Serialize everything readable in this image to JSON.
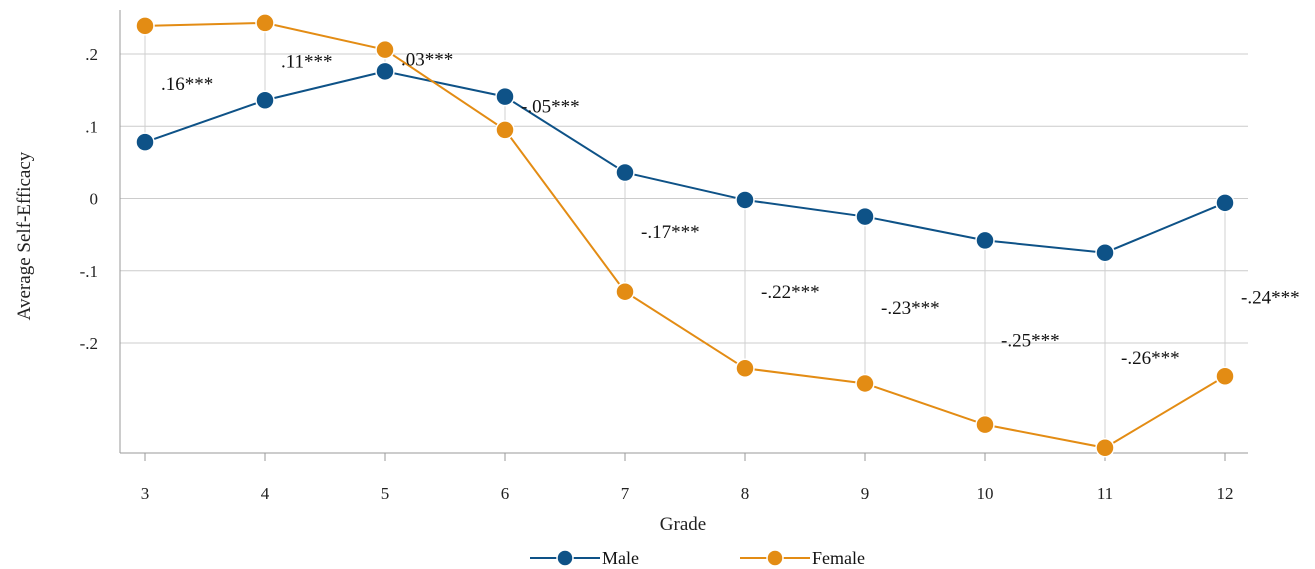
{
  "chart_data": {
    "type": "line",
    "title": "",
    "xlabel": "Grade",
    "ylabel": "Average Self-Efficacy",
    "x": [
      3,
      4,
      5,
      6,
      7,
      8,
      9,
      10,
      11,
      12
    ],
    "x_tick_labels": [
      "3",
      "4",
      "5",
      "6",
      "7",
      "8",
      "9",
      "10",
      "11",
      "12"
    ],
    "ylim": [
      -0.35,
      0.26
    ],
    "y_ticks": [
      0.2,
      0.1,
      0,
      -0.1,
      -0.2
    ],
    "y_tick_labels": [
      ".2",
      ".1",
      "0",
      "-.1",
      "-.2"
    ],
    "grid": "horizontal",
    "legend_position": "bottom",
    "series": [
      {
        "name": "Male",
        "color": "#0E5287",
        "values": [
          0.078,
          0.136,
          0.176,
          0.141,
          0.036,
          -0.002,
          -0.025,
          -0.058,
          -0.075,
          -0.006
        ]
      },
      {
        "name": "Female",
        "color": "#E38C14",
        "values": [
          0.239,
          0.243,
          0.206,
          0.095,
          -0.129,
          -0.235,
          -0.256,
          -0.313,
          -0.345,
          -0.246
        ]
      }
    ],
    "annotations": [
      {
        "x": 3,
        "text": ".16***"
      },
      {
        "x": 4,
        "text": ".11***"
      },
      {
        "x": 5,
        "text": ".03***"
      },
      {
        "x": 6,
        "text": "-.05***"
      },
      {
        "x": 7,
        "text": "-.17***"
      },
      {
        "x": 8,
        "text": "-.22***"
      },
      {
        "x": 9,
        "text": "-.23***"
      },
      {
        "x": 10,
        "text": "-.25***"
      },
      {
        "x": 11,
        "text": "-.26***"
      },
      {
        "x": 12,
        "text": "-.24***"
      }
    ]
  }
}
